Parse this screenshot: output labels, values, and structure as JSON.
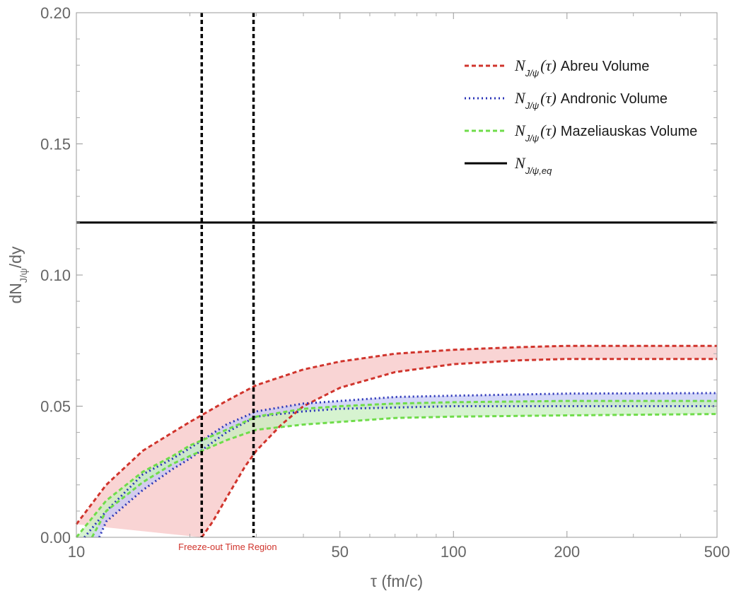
{
  "chart_data": {
    "type": "line",
    "xscale": "log",
    "xlim": [
      10,
      500
    ],
    "ylim": [
      0,
      0.2
    ],
    "xlabel": "τ (fm/c)",
    "ylabel": {
      "main": "dN",
      "sub": "J/ψ",
      "tail": "/dy"
    },
    "xticks": [
      {
        "value": 10,
        "label": "10"
      },
      {
        "value": 50,
        "label": "50"
      },
      {
        "value": 100,
        "label": "100"
      },
      {
        "value": 200,
        "label": "200"
      },
      {
        "value": 500,
        "label": "500"
      }
    ],
    "xminor": [
      20,
      30,
      40,
      60,
      70,
      80,
      90,
      300,
      400
    ],
    "yticks": [
      {
        "value": 0,
        "label": "0.00"
      },
      {
        "value": 0.05,
        "label": "0.05"
      },
      {
        "value": 0.1,
        "label": "0.10"
      },
      {
        "value": 0.15,
        "label": "0.15"
      },
      {
        "value": 0.2,
        "label": "0.20"
      }
    ],
    "yminor": [
      0.01,
      0.02,
      0.03,
      0.04,
      0.06,
      0.07,
      0.08,
      0.09,
      0.11,
      0.12,
      0.13,
      0.14,
      0.16,
      0.17,
      0.18,
      0.19
    ],
    "series": [
      {
        "name": "Abreu Volume",
        "color": "#d0342c",
        "fill": "#f7c6c6",
        "style": "dashed",
        "upper": {
          "x": [
            10,
            12,
            15,
            18,
            20,
            25,
            30,
            40,
            50,
            70,
            100,
            150,
            200,
            300,
            500
          ],
          "y": [
            0.005,
            0.02,
            0.033,
            0.04,
            0.044,
            0.052,
            0.058,
            0.064,
            0.067,
            0.07,
            0.0715,
            0.0725,
            0.073,
            0.073,
            0.073
          ]
        },
        "lower": {
          "x": [
            21.5,
            23,
            25,
            28,
            30,
            35,
            40,
            50,
            70,
            100,
            150,
            200,
            300,
            500
          ],
          "y": [
            0,
            0.006,
            0.015,
            0.027,
            0.033,
            0.043,
            0.05,
            0.057,
            0.063,
            0.066,
            0.0675,
            0.068,
            0.068,
            0.068
          ]
        }
      },
      {
        "name": "Andronic Volume",
        "color": "#2b35b8",
        "fill": "#c5c9f5",
        "style": "dotted",
        "upper": {
          "x": [
            10.5,
            12,
            15,
            18,
            20,
            25,
            30,
            40,
            50,
            70,
            100,
            200,
            500
          ],
          "y": [
            0,
            0.01,
            0.024,
            0.03,
            0.034,
            0.043,
            0.048,
            0.051,
            0.052,
            0.0535,
            0.054,
            0.0548,
            0.055
          ]
        },
        "lower": {
          "x": [
            11.5,
            12,
            15,
            18,
            20,
            25,
            30,
            40,
            50,
            70,
            100,
            200,
            500
          ],
          "y": [
            0,
            0.006,
            0.018,
            0.026,
            0.03,
            0.04,
            0.046,
            0.048,
            0.049,
            0.0495,
            0.05,
            0.05,
            0.05
          ]
        }
      },
      {
        "name": "Mazeliauskas Volume",
        "color": "#6fdc4a",
        "fill": "#c8efc0",
        "style": "dashed",
        "upper": {
          "x": [
            10,
            12,
            15,
            18,
            20,
            25,
            30,
            40,
            50,
            70,
            100,
            200,
            500
          ],
          "y": [
            0,
            0.014,
            0.025,
            0.031,
            0.035,
            0.041,
            0.046,
            0.049,
            0.05,
            0.051,
            0.0515,
            0.052,
            0.052
          ]
        },
        "lower": {
          "x": [
            11,
            12,
            15,
            18,
            20,
            25,
            30,
            40,
            50,
            70,
            100,
            200,
            500
          ],
          "y": [
            0,
            0.01,
            0.021,
            0.028,
            0.031,
            0.037,
            0.041,
            0.043,
            0.044,
            0.0455,
            0.046,
            0.0465,
            0.047
          ]
        }
      }
    ],
    "equilibrium": {
      "name": "eq",
      "value": 0.12,
      "color": "#000000"
    },
    "freezeout": {
      "x": [
        21.5,
        29.5
      ],
      "label": "Freeze-out Time Region",
      "color": "#000000"
    },
    "legend": {
      "position": "top-right",
      "prefix": "N",
      "sub": "J/ψ",
      "arg": "(τ)",
      "eq_sub": "J/ψ,eq"
    }
  }
}
